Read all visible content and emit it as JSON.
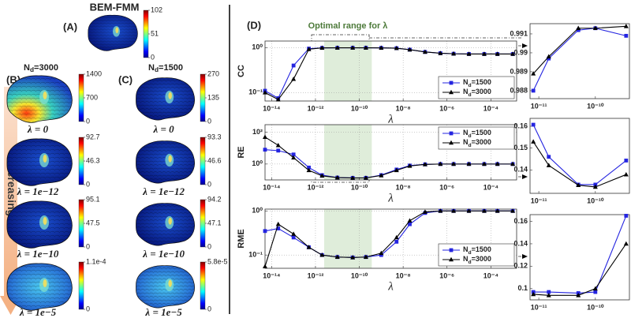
{
  "panel_a": {
    "title": "BEM-FMM",
    "label": "(A)",
    "colorbar": {
      "clim": [
        0,
        102
      ],
      "ticks": [
        0,
        51,
        102
      ]
    }
  },
  "panel_b": {
    "label": "(B)",
    "heading": "Nd=3000",
    "rows": [
      {
        "colorbar": {
          "clim": [
            0,
            1400
          ],
          "ticks": [
            0,
            700,
            1400
          ]
        },
        "caption": "λ = 0"
      },
      {
        "colorbar": {
          "clim": [
            0,
            92.7
          ],
          "ticks": [
            0,
            46.3,
            92.7
          ]
        },
        "caption": "λ = 1e−12"
      },
      {
        "colorbar": {
          "clim": [
            0,
            95.1
          ],
          "ticks": [
            0,
            47.5,
            95.1
          ]
        },
        "caption": "λ = 1e−10"
      },
      {
        "colorbar": {
          "clim": [
            0,
            0.00011
          ],
          "ticks": [
            0,
            {
              "value": 0.00011,
              "label": "1.1e-4"
            }
          ]
        },
        "caption": "λ = 1e−5"
      }
    ]
  },
  "panel_c": {
    "label": "(C)",
    "heading": "Nd=1500",
    "rows": [
      {
        "colorbar": {
          "clim": [
            0,
            270
          ],
          "ticks": [
            0,
            135,
            270
          ]
        },
        "caption": "λ = 0"
      },
      {
        "colorbar": {
          "clim": [
            0,
            93.3
          ],
          "ticks": [
            0,
            46.6,
            93.3
          ]
        },
        "caption": "λ = 1e−12"
      },
      {
        "colorbar": {
          "clim": [
            0,
            94.2
          ],
          "ticks": [
            0,
            47.1,
            94.2
          ]
        },
        "caption": "λ = 1e−10"
      },
      {
        "colorbar": {
          "clim": [
            0,
            5.8e-05
          ],
          "ticks": [
            0,
            {
              "value": 5.8e-05,
              "label": "5.8e-5"
            }
          ]
        },
        "caption": "λ = 1e−5"
      }
    ]
  },
  "arrow_label": "Increasing λ",
  "panel_d": {
    "label": "(D)",
    "annotation": "Optimal range for λ",
    "optimal_range": [
      2.5e-12,
      3.7e-10
    ]
  },
  "chart_data": [
    {
      "type": "line",
      "y_label": "CC",
      "x_label": "λ",
      "log_x": true,
      "log_y": true,
      "grid": true,
      "legend": "lower right",
      "show_optimal_range": true,
      "x": [
        5e-15,
        2e-14,
        1e-13,
        5e-13,
        2e-12,
        1e-11,
        5e-11,
        2e-10,
        1e-09,
        5e-09,
        2e-08,
        1e-07,
        5e-07,
        2e-06,
        1e-05,
        5e-05,
        0.0002,
        0.001
      ],
      "xlim": [
        5e-15,
        0.0015
      ],
      "xticks": [
        {
          "value": 1e-14,
          "label": "10⁻¹⁴"
        },
        {
          "value": 1e-12,
          "label": "10⁻¹²"
        },
        {
          "value": 1e-10,
          "label": "10⁻¹⁰"
        },
        {
          "value": 1e-08,
          "label": "10⁻⁸"
        },
        {
          "value": 1e-06,
          "label": "10⁻⁶"
        },
        {
          "value": 0.0001,
          "label": "10⁻⁴"
        }
      ],
      "ylim": [
        0.065,
        1.4
      ],
      "yticks": [
        {
          "value": 0.1,
          "label": "10⁻¹"
        },
        {
          "value": 1,
          "label": "10⁰"
        }
      ],
      "series": [
        {
          "name": "Nd=1500",
          "color": "#2424e0",
          "marker": "square",
          "values": [
            0.11,
            0.075,
            0.4,
            0.95,
            0.985,
            0.9895,
            0.991,
            0.9908,
            0.985,
            0.97,
            0.9,
            0.8,
            0.75,
            0.73,
            0.72,
            0.72,
            0.72,
            0.72
          ]
        },
        {
          "name": "Nd=3000",
          "color": "#000000",
          "marker": "triangle",
          "values": [
            0.1,
            0.07,
            0.2,
            0.92,
            0.987,
            0.9899,
            0.9911,
            0.9912,
            0.985,
            0.97,
            0.9,
            0.8,
            0.75,
            0.73,
            0.72,
            0.72,
            0.72,
            0.72
          ]
        }
      ]
    },
    {
      "type": "line",
      "y_label": "RE",
      "x_label": "λ",
      "log_x": true,
      "log_y": true,
      "grid": true,
      "legend": "upper right",
      "show_optimal_range": true,
      "x": [
        5e-15,
        2e-14,
        1e-13,
        5e-13,
        2e-12,
        1e-11,
        5e-11,
        2e-10,
        1e-09,
        5e-09,
        2e-08,
        1e-07,
        5e-07,
        2e-06,
        1e-05,
        5e-05,
        0.0002,
        0.001
      ],
      "xlim": [
        5e-15,
        0.0015
      ],
      "xticks": [
        {
          "value": 1e-14,
          "label": "10⁻¹⁴"
        },
        {
          "value": 1e-12,
          "label": "10⁻¹²"
        },
        {
          "value": 1e-10,
          "label": "10⁻¹⁰"
        },
        {
          "value": 1e-08,
          "label": "10⁻⁸"
        },
        {
          "value": 1e-06,
          "label": "10⁻⁶"
        },
        {
          "value": 0.0001,
          "label": "10⁻⁴"
        }
      ],
      "ylim": [
        0.1,
        300
      ],
      "yticks": [
        {
          "value": 1,
          "label": "10⁰"
        },
        {
          "value": 100,
          "label": "10²"
        }
      ],
      "series": [
        {
          "name": "Nd=1500",
          "color": "#2424e0",
          "marker": "square",
          "values": [
            8,
            7,
            4,
            0.6,
            0.2,
            0.14,
            0.134,
            0.135,
            0.2,
            0.45,
            0.8,
            0.95,
            1,
            1,
            1,
            1,
            1,
            1
          ]
        },
        {
          "name": "Nd=3000",
          "color": "#000000",
          "marker": "triangle",
          "values": [
            50,
            15,
            2.5,
            0.4,
            0.18,
            0.14,
            0.132,
            0.134,
            0.19,
            0.4,
            0.75,
            0.95,
            1,
            1,
            1,
            1,
            1,
            1
          ]
        }
      ]
    },
    {
      "type": "line",
      "y_label": "RME",
      "x_label": "λ",
      "log_x": true,
      "log_y": true,
      "grid": true,
      "legend": "lower right",
      "show_optimal_range": true,
      "x": [
        5e-15,
        2e-14,
        1e-13,
        5e-13,
        2e-12,
        1e-11,
        5e-11,
        2e-10,
        1e-09,
        5e-09,
        2e-08,
        1e-07,
        5e-07,
        2e-06,
        1e-05,
        5e-05,
        0.0002,
        0.001
      ],
      "xlim": [
        5e-15,
        0.0015
      ],
      "xticks": [
        {
          "value": 1e-14,
          "label": "10⁻¹⁴"
        },
        {
          "value": 1e-12,
          "label": "10⁻¹²"
        },
        {
          "value": 1e-10,
          "label": "10⁻¹⁰"
        },
        {
          "value": 1e-08,
          "label": "10⁻⁸"
        },
        {
          "value": 1e-06,
          "label": "10⁻⁶"
        },
        {
          "value": 0.0001,
          "label": "10⁻⁴"
        }
      ],
      "ylim": [
        0.05,
        1.1
      ],
      "yticks": [
        {
          "value": 0.1,
          "label": "10⁻¹"
        },
        {
          "value": 1,
          "label": "10⁰"
        }
      ],
      "series": [
        {
          "name": "Nd=1500",
          "color": "#2424e0",
          "marker": "square",
          "values": [
            0.35,
            0.4,
            0.25,
            0.15,
            0.1,
            0.09,
            0.088,
            0.09,
            0.1,
            0.2,
            0.5,
            0.9,
            1,
            1,
            1,
            1,
            1,
            1
          ]
        },
        {
          "name": "Nd=3000",
          "color": "#000000",
          "marker": "triangle",
          "values": [
            0.055,
            0.5,
            0.3,
            0.15,
            0.1,
            0.09,
            0.088,
            0.09,
            0.11,
            0.25,
            0.6,
            0.95,
            1,
            1,
            1,
            1,
            1,
            1
          ]
        }
      ]
    },
    {
      "type": "line",
      "log_x": true,
      "log_y": false,
      "grid": false,
      "x": [
        8e-12,
        1.5e-11,
        5e-11,
        1e-10,
        3.5e-10
      ],
      "xlim": [
        7e-12,
        4e-10
      ],
      "xticks": [
        {
          "value": 1e-11,
          "label": "10⁻¹¹"
        },
        {
          "value": 1e-10,
          "label": "10⁻¹⁰"
        }
      ],
      "ylim": [
        0.98758,
        0.99154
      ],
      "yticks": [
        0.988,
        0.989,
        0.99,
        0.991
      ],
      "series": [
        {
          "color": "#2424e0",
          "marker": "square",
          "values": [
            0.988,
            0.9897,
            0.9912,
            0.9913,
            0.9909
          ]
        },
        {
          "color": "#000000",
          "marker": "triangle",
          "values": [
            0.9889,
            0.9898,
            0.9913,
            0.9913,
            0.9914
          ]
        }
      ]
    },
    {
      "type": "line",
      "log_x": true,
      "log_y": false,
      "grid": false,
      "x": [
        8e-12,
        1.5e-11,
        5e-11,
        1e-10,
        3.5e-10
      ],
      "xlim": [
        7e-12,
        4e-10
      ],
      "xticks": [
        {
          "value": 1e-11,
          "label": "10⁻¹¹"
        },
        {
          "value": 1e-10,
          "label": "10⁻¹⁰"
        }
      ],
      "ylim": [
        0.1293,
        0.1636
      ],
      "yticks": [
        0.14,
        0.15,
        0.16
      ],
      "series": [
        {
          "color": "#2424e0",
          "marker": "square",
          "values": [
            0.1607,
            0.146,
            0.1333,
            0.1333,
            0.1443
          ]
        },
        {
          "color": "#000000",
          "marker": "triangle",
          "values": [
            0.1529,
            0.1421,
            0.133,
            0.1322,
            0.1379
          ]
        }
      ]
    },
    {
      "type": "line",
      "log_x": true,
      "log_y": false,
      "grid": false,
      "x": [
        8e-12,
        1.5e-11,
        5e-11,
        1e-10,
        3.5e-10
      ],
      "xlim": [
        7e-12,
        4e-10
      ],
      "xticks": [
        {
          "value": 1e-11,
          "label": "10⁻¹¹"
        },
        {
          "value": 1e-10,
          "label": "10⁻¹⁰"
        }
      ],
      "ylim": [
        0.09,
        0.166
      ],
      "yticks": [
        0.1,
        0.12,
        0.14,
        0.16
      ],
      "series": [
        {
          "color": "#2424e0",
          "marker": "square",
          "values": [
            0.097,
            0.097,
            0.096,
            0.097,
            0.165
          ]
        },
        {
          "color": "#000000",
          "marker": "triangle",
          "values": [
            0.095,
            0.094,
            0.094,
            0.1,
            0.14
          ]
        }
      ]
    }
  ]
}
